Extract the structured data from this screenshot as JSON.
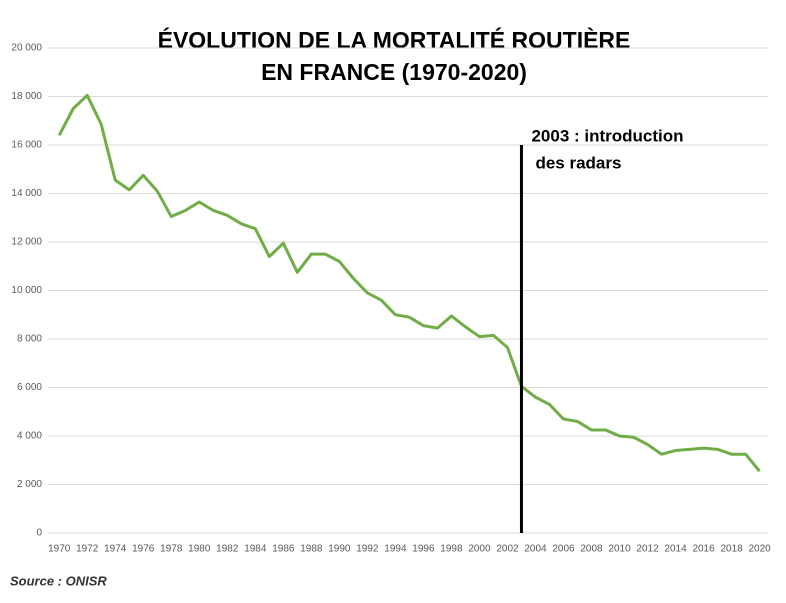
{
  "chart_data": {
    "type": "line",
    "title": [
      "ÉVOLUTION DE LA MORTALITÉ ROUTIÈRE",
      "EN FRANCE (1970-2020)"
    ],
    "x": [
      1970,
      1971,
      1972,
      1973,
      1974,
      1975,
      1976,
      1977,
      1978,
      1979,
      1980,
      1981,
      1982,
      1983,
      1984,
      1985,
      1986,
      1987,
      1988,
      1989,
      1990,
      1991,
      1992,
      1993,
      1994,
      1995,
      1996,
      1997,
      1998,
      1999,
      2000,
      2001,
      2002,
      2003,
      2004,
      2005,
      2006,
      2007,
      2008,
      2009,
      2010,
      2011,
      2012,
      2013,
      2014,
      2015,
      2016,
      2017,
      2018,
      2019,
      2020
    ],
    "series": [
      {
        "color": "#70ad47",
        "values": [
          16400,
          17500,
          18050,
          16850,
          14550,
          14150,
          14750,
          14100,
          13050,
          13300,
          13650,
          13300,
          13100,
          12750,
          12550,
          11400,
          11950,
          10750,
          11500,
          11500,
          11200,
          10500,
          9900,
          9600,
          9000,
          8900,
          8550,
          8450,
          8950,
          8500,
          8100,
          8150,
          7650,
          6050,
          5600,
          5300,
          4700,
          4600,
          4250,
          4250,
          4000,
          3950,
          3650,
          3250,
          3400,
          3450,
          3500,
          3450,
          3250,
          3250,
          2550
        ]
      }
    ],
    "xlim": [
      1969.2,
      2020.6
    ],
    "xticks": [
      1970,
      1972,
      1974,
      1976,
      1978,
      1980,
      1982,
      1984,
      1986,
      1988,
      1990,
      1992,
      1994,
      1996,
      1998,
      2000,
      2002,
      2004,
      2006,
      2008,
      2010,
      2012,
      2014,
      2016,
      2018,
      2020
    ],
    "ylim": [
      0,
      20000
    ],
    "yticks": [
      0,
      {
        "value": 2000,
        "label": "2 000"
      },
      {
        "value": 4000,
        "label": "4 000"
      },
      {
        "value": 6000,
        "label": "6 000"
      },
      {
        "value": 8000,
        "label": "8 000"
      },
      {
        "value": 10000,
        "label": "10 000"
      },
      {
        "value": 12000,
        "label": "12 000"
      },
      {
        "value": 14000,
        "label": "14 000"
      },
      {
        "value": 16000,
        "label": "16 000"
      },
      {
        "value": 18000,
        "label": "18 000"
      },
      {
        "value": 20000,
        "label": "20 000"
      }
    ],
    "grid": true,
    "annotation": {
      "lines": [
        "2003 : introduction",
        "des radars"
      ],
      "x": 2003,
      "y": 16000,
      "color": "#000000"
    },
    "source": "Source : ONISR"
  }
}
